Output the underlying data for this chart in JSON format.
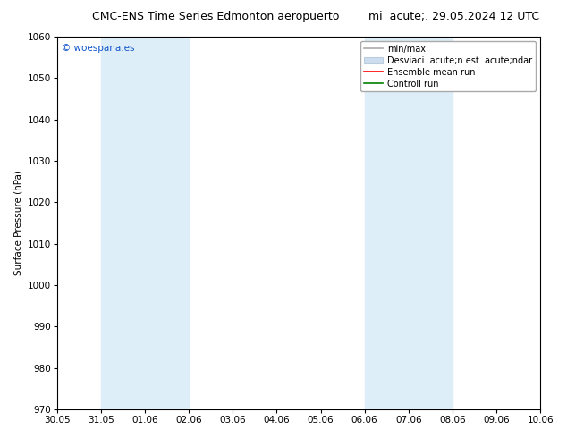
{
  "title": "CMC-ENS Time Series Edmonton aeropuerto",
  "title_right": "mi  acute;. 29.05.2024 12 UTC",
  "ylabel": "Surface Pressure (hPa)",
  "ylim": [
    970,
    1060
  ],
  "yticks": [
    970,
    980,
    990,
    1000,
    1010,
    1020,
    1030,
    1040,
    1050,
    1060
  ],
  "xlabel_ticks": [
    "30.05",
    "31.05",
    "01.06",
    "02.06",
    "03.06",
    "04.06",
    "05.06",
    "06.06",
    "07.06",
    "08.06",
    "09.06",
    "10.06"
  ],
  "shaded_bands": [
    {
      "xstart": 1.0,
      "xend": 3.0
    },
    {
      "xstart": 7.0,
      "xend": 9.0
    }
  ],
  "shaded_color": "#ddeef8",
  "watermark": "© woespana.es",
  "legend_line1": "min/max",
  "legend_line2": "Desviaci  acute;n est  acute;ndar",
  "legend_line3": "Ensemble mean run",
  "legend_line4": "Controll run",
  "background_color": "#ffffff",
  "plot_bg_color": "#ffffff",
  "border_color": "#000000",
  "font_size": 7.5,
  "title_font_size": 9
}
